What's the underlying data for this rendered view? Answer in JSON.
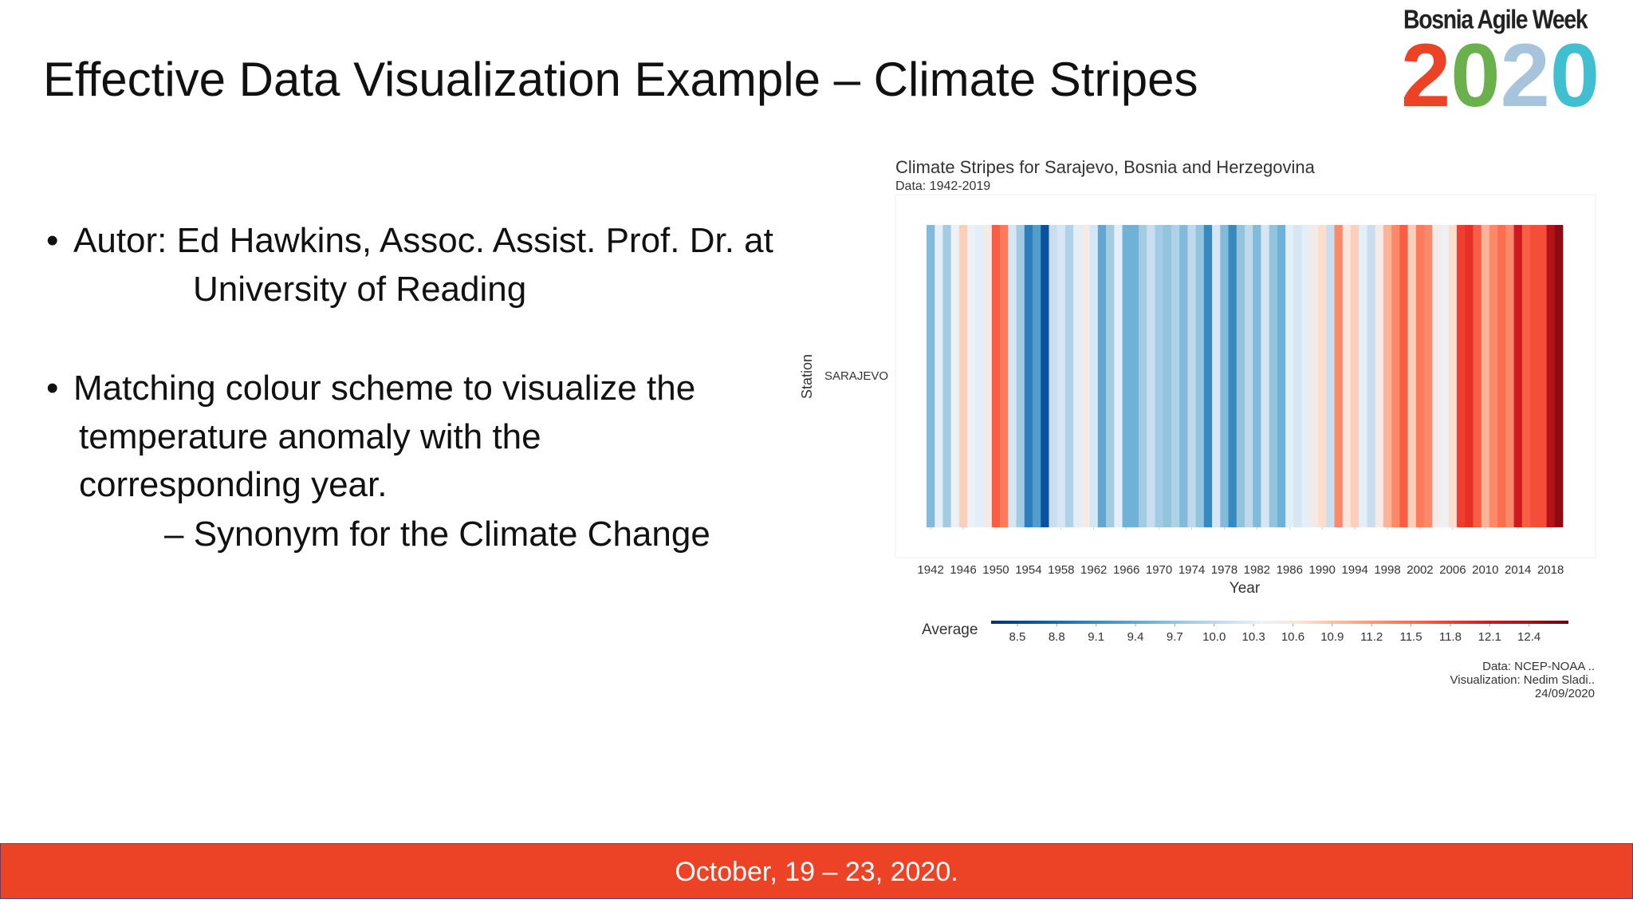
{
  "slide": {
    "title": "Effective Data Visualization Example – Climate Stripes",
    "bullets": [
      {
        "lines": [
          "Autor: Ed Hawkins, Assoc. Assist. Prof. Dr. at",
          "University of Reading"
        ]
      },
      {
        "lines": [
          "Matching colour scheme to visualize the",
          "temperature anomaly with the",
          "corresponding year."
        ],
        "sub": "Synonym for the Climate Change"
      }
    ],
    "footer": "October, 19 – 23, 2020."
  },
  "logo": {
    "name": "Bosnia Agile Week",
    "year": "2020"
  },
  "chart_data": {
    "type": "heatmap",
    "title": "Climate Stripes for Sarajevo, Bosnia and Herzegovina",
    "subtitle": "Data: 1942-2019",
    "y_label": "Station",
    "categories": [
      "SARAJEVO"
    ],
    "x_label": "Year",
    "x": [
      1942,
      1943,
      1944,
      1945,
      1946,
      1947,
      1948,
      1949,
      1950,
      1951,
      1952,
      1953,
      1954,
      1955,
      1956,
      1957,
      1958,
      1959,
      1960,
      1961,
      1962,
      1963,
      1964,
      1965,
      1966,
      1967,
      1968,
      1969,
      1970,
      1971,
      1972,
      1973,
      1974,
      1975,
      1976,
      1977,
      1978,
      1979,
      1980,
      1981,
      1982,
      1983,
      1984,
      1985,
      1986,
      1987,
      1988,
      1989,
      1990,
      1991,
      1992,
      1993,
      1994,
      1995,
      1996,
      1997,
      1998,
      1999,
      2000,
      2001,
      2002,
      2003,
      2004,
      2005,
      2006,
      2007,
      2008,
      2009,
      2010,
      2011,
      2012,
      2013,
      2014,
      2015,
      2016,
      2017,
      2018,
      2019
    ],
    "values": [
      9.6,
      10.3,
      9.8,
      10.4,
      10.8,
      10.4,
      10.3,
      10.5,
      11.6,
      11.4,
      10.2,
      9.8,
      9.0,
      9.3,
      8.6,
      10.1,
      10.2,
      9.9,
      10.3,
      10.5,
      10.2,
      9.4,
      9.8,
      10.3,
      9.5,
      9.5,
      9.8,
      10.1,
      9.8,
      9.7,
      9.9,
      9.6,
      10.0,
      9.7,
      9.1,
      10.2,
      9.6,
      9.1,
      9.7,
      10.0,
      9.6,
      10.2,
      9.7,
      9.5,
      10.3,
      10.2,
      10.3,
      10.5,
      10.7,
      10.1,
      11.3,
      10.6,
      10.8,
      10.3,
      10.1,
      10.5,
      11.0,
      11.3,
      11.6,
      10.8,
      11.4,
      11.3,
      10.5,
      10.4,
      10.7,
      11.8,
      11.9,
      11.6,
      11.0,
      11.3,
      11.5,
      11.3,
      12.1,
      11.6,
      11.7,
      11.7,
      12.3,
      12.5
    ],
    "xlim": [
      1941.5,
      2019.5
    ],
    "xticks": [
      1942,
      1946,
      1950,
      1954,
      1958,
      1962,
      1966,
      1970,
      1974,
      1978,
      1982,
      1986,
      1990,
      1994,
      1998,
      2002,
      2006,
      2010,
      2014,
      2018
    ],
    "colorscale": [
      "#08306b",
      "#08519c",
      "#2171b5",
      "#4292c6",
      "#6baed6",
      "#9ecae1",
      "#c6dbef",
      "#eaf2fa",
      "#fde4d8",
      "#fcbba1",
      "#fc9272",
      "#fb6a4a",
      "#ef3b2c",
      "#cb181d",
      "#a50f15",
      "#67000d"
    ],
    "colorbar": {
      "title": "Average",
      "lim": [
        8.3,
        12.7
      ],
      "ticks": [
        8.5,
        8.8,
        9.1,
        9.4,
        9.7,
        {
          "value": 10,
          "label": "10.0"
        },
        10.3,
        10.6,
        10.9,
        11.2,
        11.5,
        11.8,
        12.1,
        12.4
      ]
    },
    "credits": [
      "Data: NCEP-NOAA ..",
      "Visualization: Nedim Sladi..",
      "24/09/2020"
    ]
  }
}
